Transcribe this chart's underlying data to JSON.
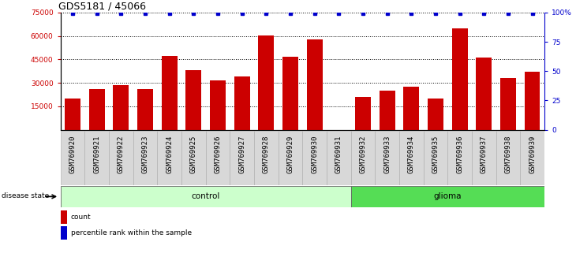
{
  "title": "GDS5181 / 45066",
  "samples": [
    "GSM769920",
    "GSM769921",
    "GSM769922",
    "GSM769923",
    "GSM769924",
    "GSM769925",
    "GSM769926",
    "GSM769927",
    "GSM769928",
    "GSM769929",
    "GSM769930",
    "GSM769931",
    "GSM769932",
    "GSM769933",
    "GSM769934",
    "GSM769935",
    "GSM769936",
    "GSM769937",
    "GSM769938",
    "GSM769939"
  ],
  "counts": [
    20000,
    26000,
    28500,
    26000,
    47000,
    38000,
    31500,
    34000,
    60500,
    46500,
    58000,
    0,
    21000,
    25000,
    27500,
    20000,
    65000,
    46000,
    33000,
    37000
  ],
  "bar_color": "#cc0000",
  "dot_color": "#0000cc",
  "n_control": 12,
  "n_glioma": 8,
  "control_label": "control",
  "glioma_label": "glioma",
  "disease_state_label": "disease state",
  "ylim_left": [
    0,
    75000
  ],
  "yticks_left": [
    15000,
    30000,
    45000,
    60000,
    75000
  ],
  "ylim_right": [
    0,
    100
  ],
  "yticks_right": [
    0,
    25,
    50,
    75,
    100
  ],
  "ytick_labels_right": [
    "0",
    "25",
    "50",
    "75",
    "100%"
  ],
  "control_bg": "#ccffcc",
  "glioma_bg": "#55dd55",
  "legend_count_label": "count",
  "legend_percentile_label": "percentile rank within the sample",
  "plot_bg": "#ffffff",
  "tick_label_bg": "#d8d8d8",
  "grid_color": "#000000",
  "title_fontsize": 9,
  "tick_fontsize": 6.5,
  "label_fontsize": 8
}
